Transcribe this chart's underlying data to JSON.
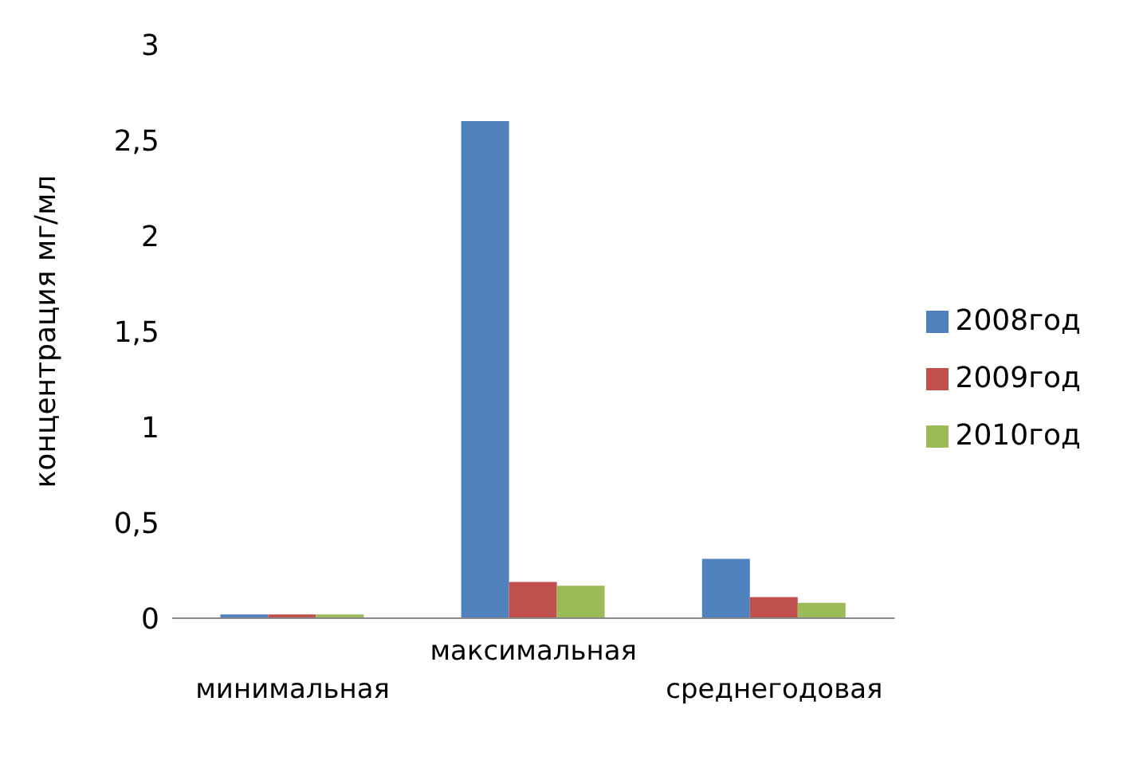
{
  "chart_data": {
    "type": "bar",
    "ylabel": "концентрация мг/мл",
    "categories": [
      "минимальная",
      "максимальная",
      "среднегодовая"
    ],
    "series": [
      {
        "name": "2008год",
        "color": "#4f81bd",
        "values": [
          0.02,
          2.6,
          0.31
        ]
      },
      {
        "name": "2009год",
        "color": "#c0504d",
        "values": [
          0.02,
          0.19,
          0.11
        ]
      },
      {
        "name": "2010год",
        "color": "#9bbb59",
        "values": [
          0.02,
          0.17,
          0.08
        ]
      }
    ],
    "ylim": [
      0,
      3
    ],
    "yticks": [
      0,
      {
        "value": 0.5,
        "label": "0,5"
      },
      1,
      {
        "value": 1.5,
        "label": "1,5"
      },
      2,
      {
        "value": 2.5,
        "label": "2,5"
      },
      3
    ],
    "grid": false,
    "legend": "right"
  }
}
